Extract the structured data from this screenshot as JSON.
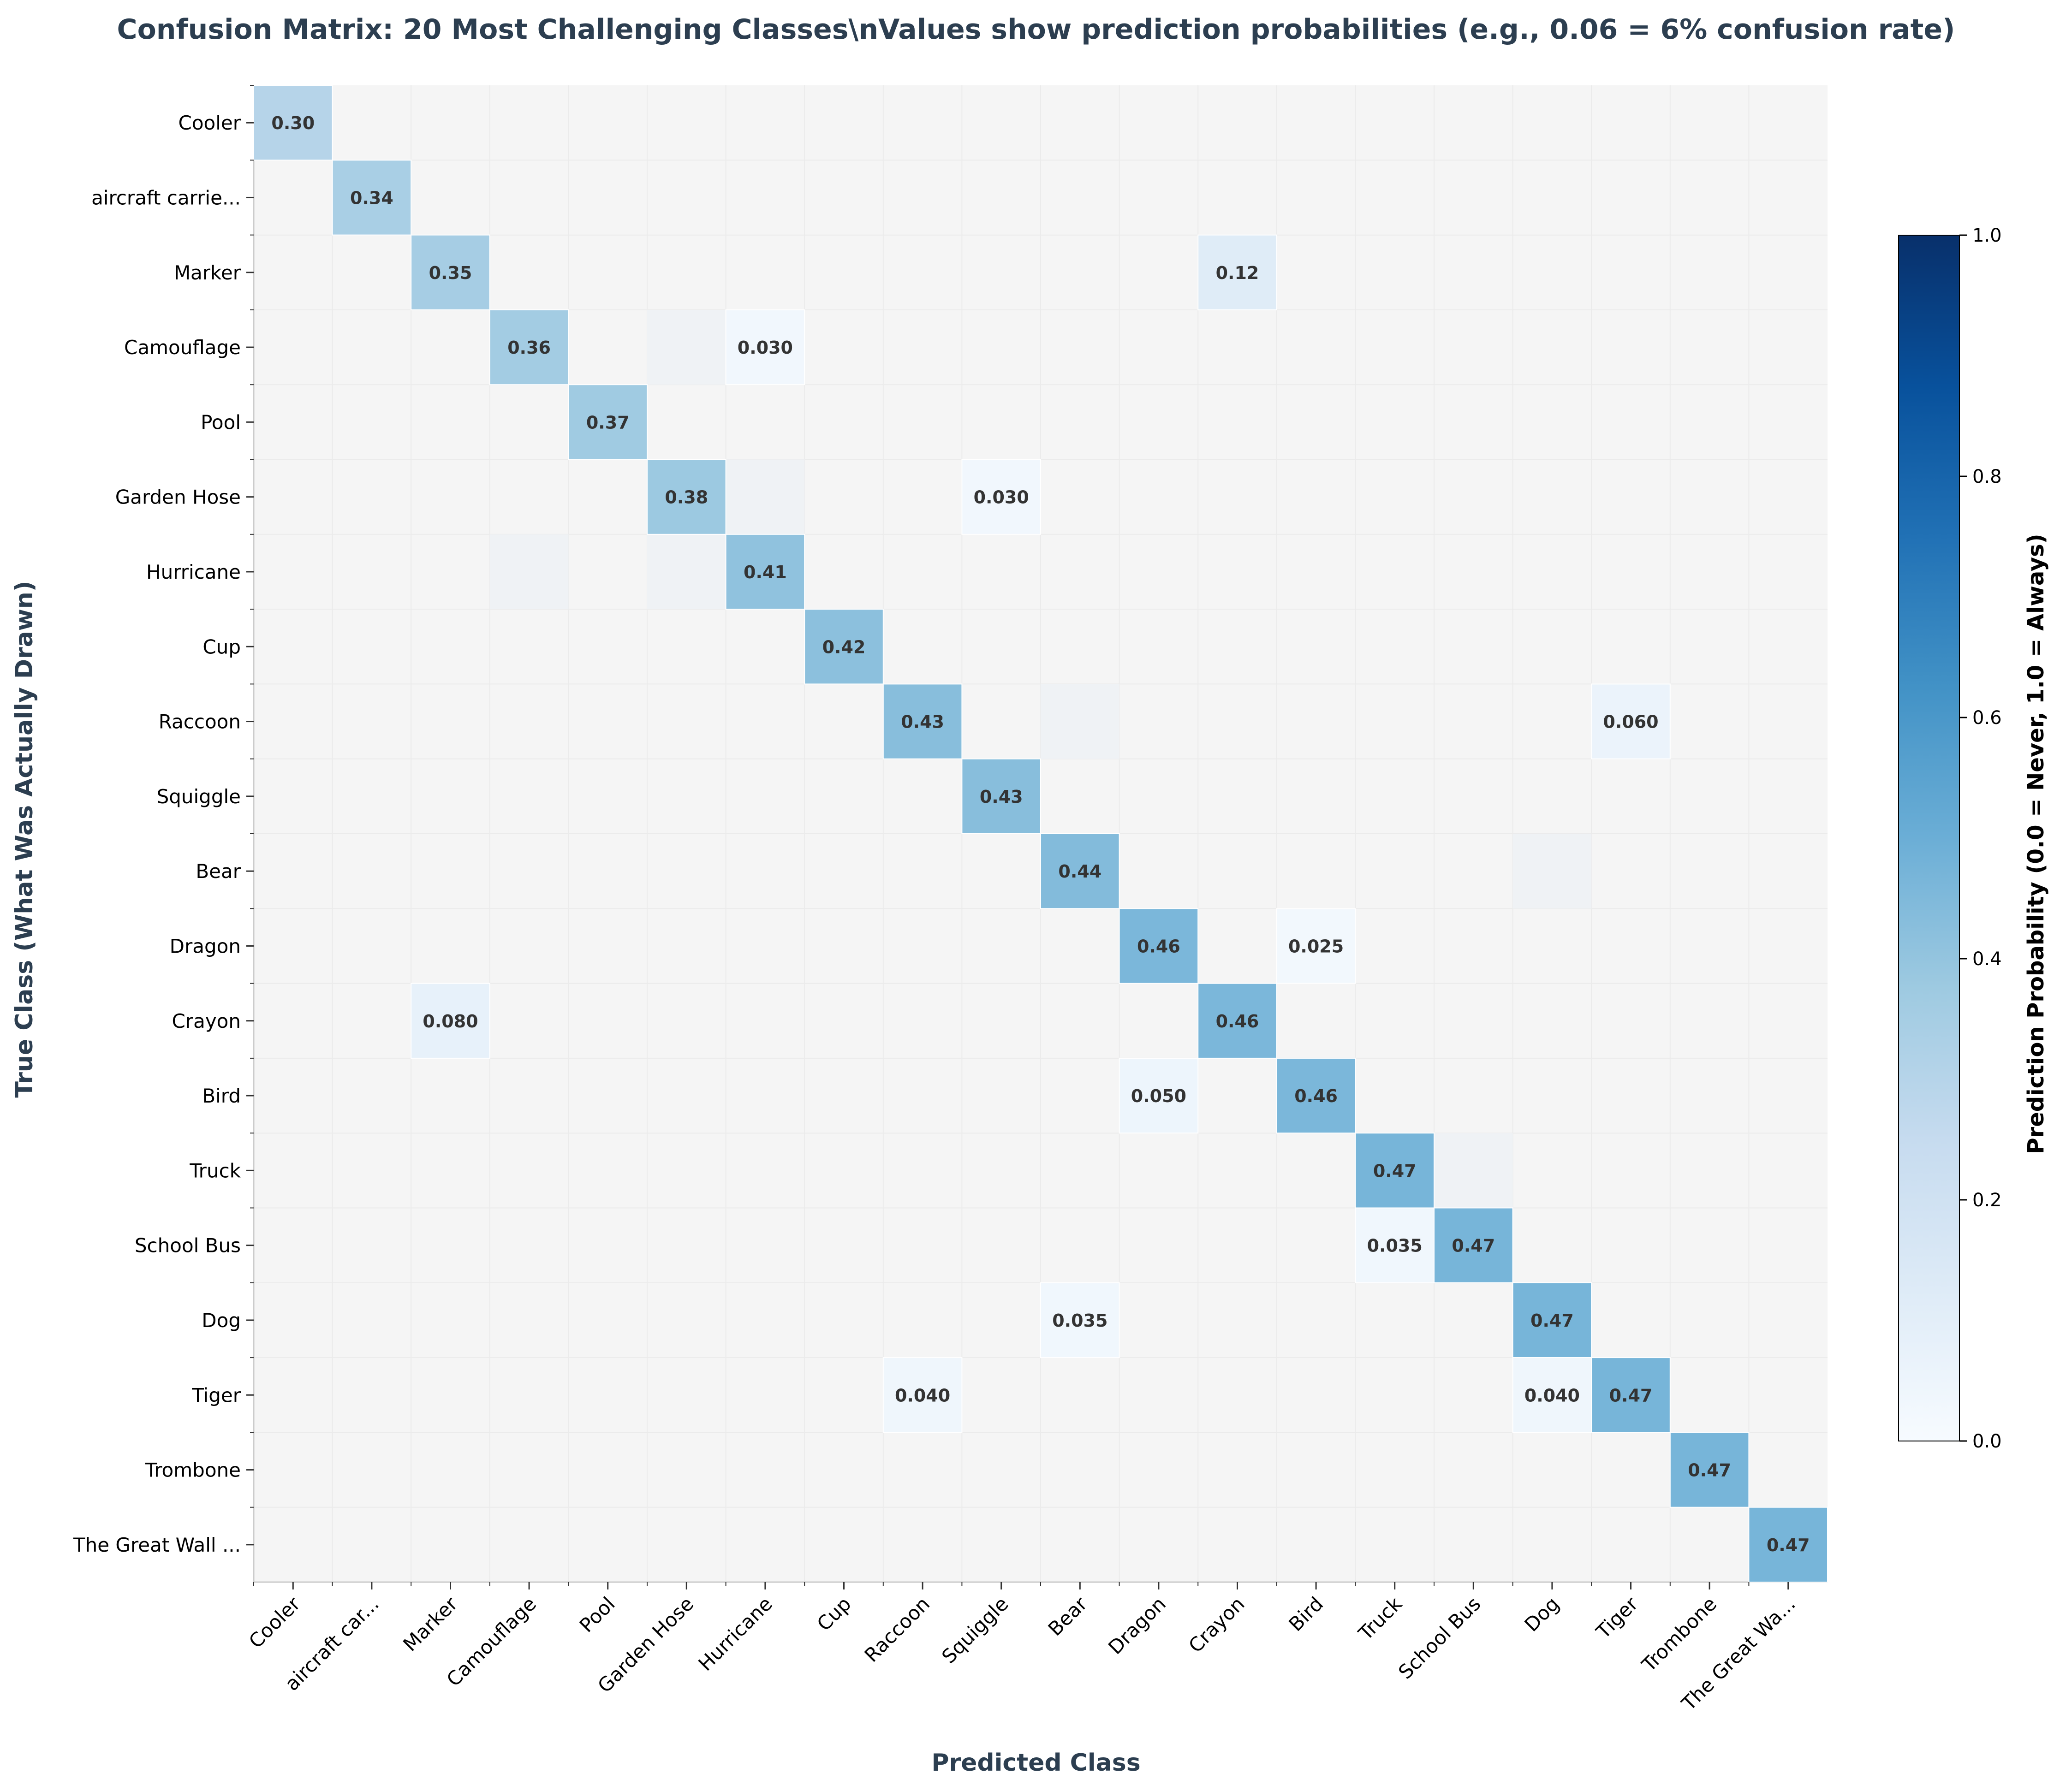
{
  "chart_data": {
    "type": "heatmap",
    "title": "Confusion Matrix: 20 Most Challenging Classes\\nValues show prediction probabilities (e.g., 0.06 = 6% confusion rate)",
    "xlabel": "Predicted Class",
    "ylabel": "True Class (What Was Actually Drawn)",
    "colorbar_label": "Prediction Probability (0.0 = Never, 1.0 = Always)",
    "colorbar_ticks": [
      "0.0",
      "0.2",
      "0.4",
      "0.6",
      "0.8",
      "1.0"
    ],
    "vmin": 0,
    "vmax": 1,
    "colormap": "Blues",
    "row_labels": [
      "Cooler",
      "aircraft carrie...",
      "Marker",
      "Camouflage",
      "Pool",
      "Garden Hose",
      "Hurricane",
      "Cup",
      "Raccoon",
      "Squiggle",
      "Bear",
      "Dragon",
      "Crayon",
      "Bird",
      "Truck",
      "School Bus",
      "Dog",
      "Tiger",
      "Trombone",
      "The Great Wall ..."
    ],
    "col_labels": [
      "Cooler",
      "aircraft car...",
      "Marker",
      "Camouflage",
      "Pool",
      "Garden Hose",
      "Hurricane",
      "Cup",
      "Raccoon",
      "Squiggle",
      "Bear",
      "Dragon",
      "Crayon",
      "Bird",
      "Truck",
      "School Bus",
      "Dog",
      "Tiger",
      "Trombone",
      "The Great Wa..."
    ],
    "annotated_cells": [
      {
        "row": 0,
        "col": 0,
        "value": 0.3,
        "label": "0.30"
      },
      {
        "row": 1,
        "col": 1,
        "value": 0.34,
        "label": "0.34"
      },
      {
        "row": 2,
        "col": 2,
        "value": 0.35,
        "label": "0.35"
      },
      {
        "row": 2,
        "col": 12,
        "value": 0.12,
        "label": "0.12"
      },
      {
        "row": 3,
        "col": 3,
        "value": 0.36,
        "label": "0.36"
      },
      {
        "row": 3,
        "col": 6,
        "value": 0.03,
        "label": "0.030"
      },
      {
        "row": 4,
        "col": 4,
        "value": 0.37,
        "label": "0.37"
      },
      {
        "row": 5,
        "col": 5,
        "value": 0.38,
        "label": "0.38"
      },
      {
        "row": 5,
        "col": 9,
        "value": 0.03,
        "label": "0.030"
      },
      {
        "row": 6,
        "col": 6,
        "value": 0.41,
        "label": "0.41"
      },
      {
        "row": 7,
        "col": 7,
        "value": 0.42,
        "label": "0.42"
      },
      {
        "row": 8,
        "col": 8,
        "value": 0.43,
        "label": "0.43"
      },
      {
        "row": 8,
        "col": 17,
        "value": 0.06,
        "label": "0.060"
      },
      {
        "row": 9,
        "col": 9,
        "value": 0.43,
        "label": "0.43"
      },
      {
        "row": 10,
        "col": 10,
        "value": 0.44,
        "label": "0.44"
      },
      {
        "row": 11,
        "col": 11,
        "value": 0.46,
        "label": "0.46"
      },
      {
        "row": 11,
        "col": 13,
        "value": 0.025,
        "label": "0.025"
      },
      {
        "row": 12,
        "col": 2,
        "value": 0.08,
        "label": "0.080"
      },
      {
        "row": 12,
        "col": 12,
        "value": 0.46,
        "label": "0.46"
      },
      {
        "row": 13,
        "col": 11,
        "value": 0.05,
        "label": "0.050"
      },
      {
        "row": 13,
        "col": 13,
        "value": 0.46,
        "label": "0.46"
      },
      {
        "row": 14,
        "col": 14,
        "value": 0.47,
        "label": "0.47"
      },
      {
        "row": 15,
        "col": 14,
        "value": 0.035,
        "label": "0.035"
      },
      {
        "row": 15,
        "col": 15,
        "value": 0.47,
        "label": "0.47"
      },
      {
        "row": 16,
        "col": 10,
        "value": 0.035,
        "label": "0.035"
      },
      {
        "row": 16,
        "col": 16,
        "value": 0.47,
        "label": "0.47"
      },
      {
        "row": 17,
        "col": 8,
        "value": 0.04,
        "label": "0.040"
      },
      {
        "row": 17,
        "col": 16,
        "value": 0.04,
        "label": "0.040"
      },
      {
        "row": 17,
        "col": 17,
        "value": 0.47,
        "label": "0.47"
      },
      {
        "row": 18,
        "col": 18,
        "value": 0.47,
        "label": "0.47"
      },
      {
        "row": 19,
        "col": 19,
        "value": 0.47,
        "label": "0.47"
      }
    ],
    "faint_cells": [
      {
        "row": 3,
        "col": 5,
        "value": 0.01
      },
      {
        "row": 5,
        "col": 6,
        "value": 0.01
      },
      {
        "row": 6,
        "col": 3,
        "value": 0.01
      },
      {
        "row": 6,
        "col": 5,
        "value": 0.01
      },
      {
        "row": 8,
        "col": 10,
        "value": 0.01
      },
      {
        "row": 10,
        "col": 16,
        "value": 0.01
      },
      {
        "row": 14,
        "col": 15,
        "value": 0.01
      }
    ]
  }
}
